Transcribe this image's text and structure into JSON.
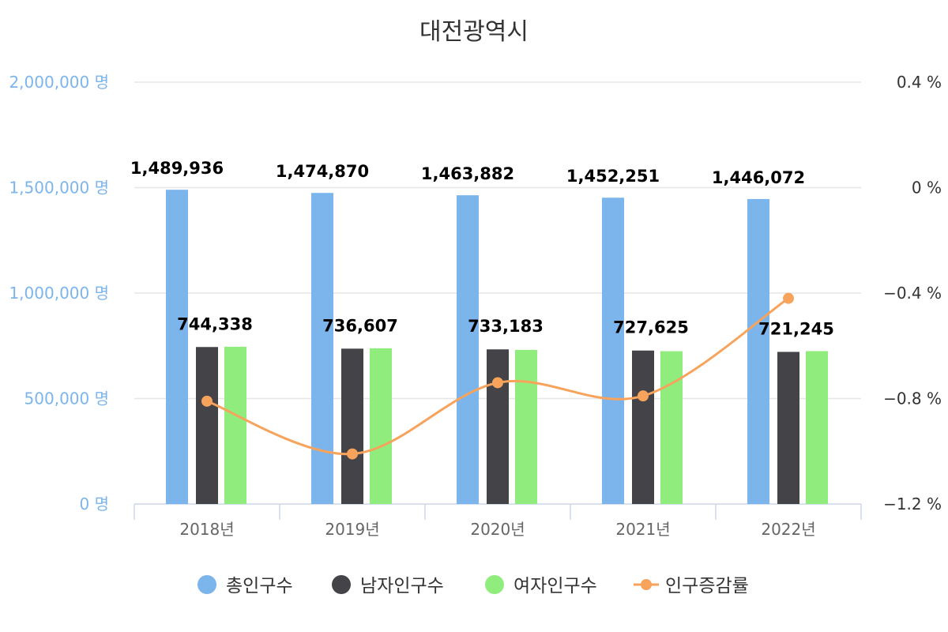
{
  "chart_data": {
    "type": "bar",
    "title": "대전광역시",
    "categories": [
      "2018년",
      "2019년",
      "2020년",
      "2021년",
      "2022년"
    ],
    "series": [
      {
        "name": "총인구수",
        "type": "bar",
        "axis": "left",
        "color": "#7cb5ec",
        "values": [
          1489936,
          1474870,
          1463882,
          1452251,
          1446072
        ],
        "labels": [
          "1,489,936",
          "1,474,870",
          "1,463,882",
          "1,452,251",
          "1,446,072"
        ]
      },
      {
        "name": "남자인구수",
        "type": "bar",
        "axis": "left",
        "color": "#434348",
        "values": [
          744338,
          736607,
          733183,
          727625,
          721245
        ],
        "labels": [
          "744,338",
          "736,607",
          "733,183",
          "727,625",
          "721,245"
        ]
      },
      {
        "name": "여자인구수",
        "type": "bar",
        "axis": "left",
        "color": "#90ed7d",
        "values": [
          745598,
          738263,
          730699,
          724626,
          724827
        ]
      },
      {
        "name": "인구증감률",
        "type": "line",
        "axis": "right",
        "color": "#f7a35c",
        "values": [
          -0.81,
          -1.01,
          -0.74,
          -0.79,
          -0.42
        ]
      }
    ],
    "y_left": {
      "min": 0,
      "max": 2000000,
      "ticks": [
        "0 명",
        "500,000 명",
        "1,000,000 명",
        "1,500,000 명",
        "2,000,000 명"
      ]
    },
    "y_right": {
      "min": -1.2,
      "max": 0.4,
      "ticks": [
        "−1.2 %",
        "−0.8 %",
        "−0.4 %",
        "0 %",
        "0.4 %"
      ]
    },
    "grid": true,
    "legend_position": "bottom-center"
  }
}
